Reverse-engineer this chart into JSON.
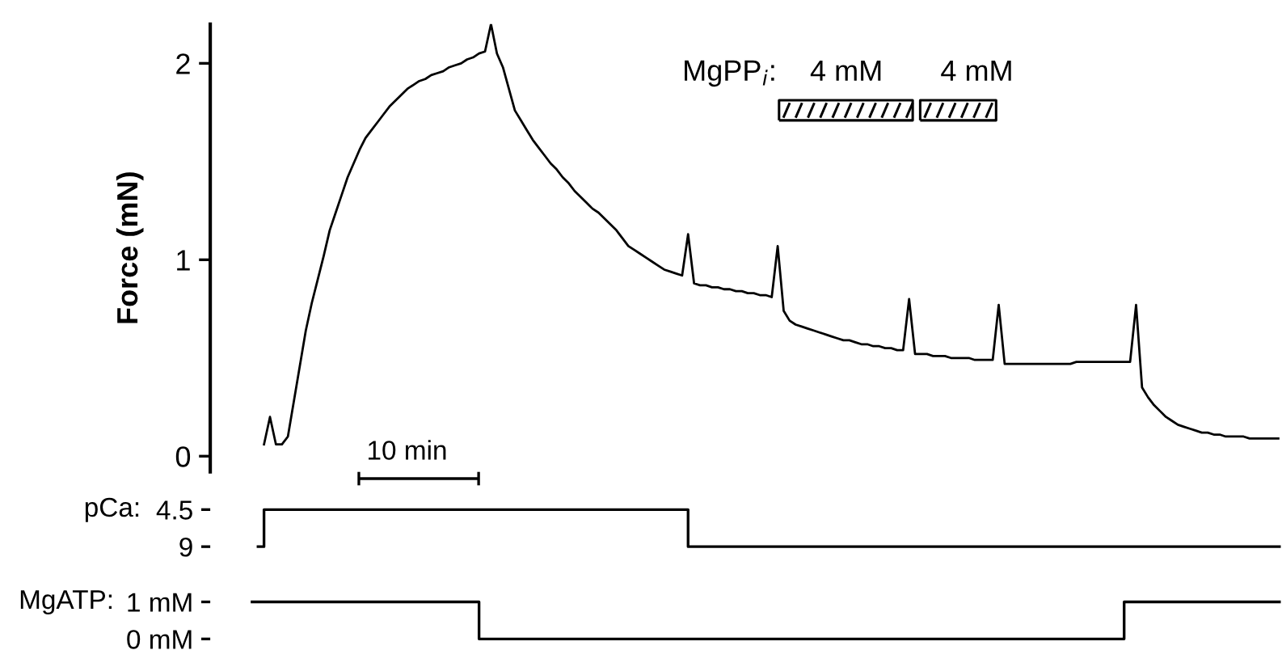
{
  "chart_data": [
    {
      "type": "line",
      "ylabel": "Force (mN)",
      "ylim": [
        -0.08,
        2.2
      ],
      "yticks": [
        0,
        1,
        2
      ],
      "tick_labels": "y",
      "grid": false,
      "categories": [
        null,
        null,
        null,
        null,
        null,
        null,
        null,
        null,
        null,
        null,
        null,
        null,
        null,
        null,
        null,
        null,
        null,
        null,
        null,
        null,
        null,
        null,
        null,
        null,
        null,
        null,
        null,
        null,
        null,
        null,
        null,
        null,
        null,
        null,
        null,
        null,
        null,
        null,
        null,
        null,
        null,
        null,
        null,
        null,
        null,
        null,
        null,
        null,
        null,
        null,
        null,
        null,
        null,
        null,
        null,
        null,
        null,
        null,
        null,
        null,
        null,
        null,
        null,
        null,
        null,
        null,
        null,
        null,
        null,
        null,
        null,
        null,
        null,
        null,
        null,
        null,
        null,
        null,
        null,
        null,
        null,
        null,
        null,
        null,
        null,
        null,
        null,
        null,
        null,
        null,
        null,
        null,
        null,
        null,
        null,
        null,
        null,
        null,
        null,
        null,
        null,
        null,
        null,
        null,
        null,
        null,
        null,
        null,
        null,
        null,
        null,
        null,
        null,
        null,
        null,
        null,
        null,
        null,
        null,
        null,
        null,
        null,
        null,
        null,
        null,
        null,
        null,
        null,
        null,
        null,
        null,
        null,
        null,
        null,
        null,
        null,
        null,
        null,
        null,
        null,
        null,
        null,
        null,
        null,
        null,
        null,
        null,
        null,
        null,
        null,
        null,
        null,
        null,
        null,
        null,
        null,
        null,
        null,
        null,
        null,
        null,
        null,
        null,
        null,
        null,
        null,
        null,
        null,
        null,
        null,
        null,
        null,
        null,
        null,
        null,
        null,
        null,
        null,
        null,
        null
      ],
      "series": [
        {
          "color": "#000000",
          "values": [
            null,
            null,
            null,
            null,
            null,
            null,
            null,
            null,
            null,
            0.06,
            0.2,
            0.06,
            0.06,
            0.1,
            0.28,
            0.46,
            0.64,
            0.78,
            0.9,
            1.02,
            1.15,
            1.24,
            1.33,
            1.42,
            1.49,
            1.56,
            1.62,
            1.66,
            1.7,
            1.74,
            1.78,
            1.81,
            1.84,
            1.87,
            1.89,
            1.91,
            1.92,
            1.94,
            1.95,
            1.96,
            1.98,
            1.99,
            2.0,
            2.02,
            2.03,
            2.05,
            2.06,
            2.2,
            2.05,
            1.98,
            1.87,
            1.76,
            1.71,
            1.66,
            1.61,
            1.57,
            1.53,
            1.49,
            1.46,
            1.42,
            1.39,
            1.35,
            1.32,
            1.29,
            1.26,
            1.24,
            1.21,
            1.18,
            1.15,
            1.11,
            1.07,
            1.05,
            1.03,
            1.01,
            0.99,
            0.97,
            0.95,
            0.94,
            0.93,
            0.92,
            1.13,
            0.88,
            0.87,
            0.87,
            0.86,
            0.86,
            0.85,
            0.85,
            0.84,
            0.84,
            0.83,
            0.83,
            0.82,
            0.82,
            0.81,
            1.07,
            0.74,
            0.69,
            0.67,
            0.66,
            0.65,
            0.64,
            0.63,
            0.62,
            0.61,
            0.6,
            0.59,
            0.59,
            0.58,
            0.57,
            0.57,
            0.56,
            0.56,
            0.55,
            0.55,
            0.54,
            0.54,
            0.8,
            0.52,
            0.52,
            0.52,
            0.51,
            0.51,
            0.51,
            0.5,
            0.5,
            0.5,
            0.5,
            0.49,
            0.49,
            0.49,
            0.49,
            0.77,
            0.47,
            0.47,
            0.47,
            0.47,
            0.47,
            0.47,
            0.47,
            0.47,
            0.47,
            0.47,
            0.47,
            0.47,
            0.48,
            0.48,
            0.48,
            0.48,
            0.48,
            0.48,
            0.48,
            0.48,
            0.48,
            0.48,
            0.77,
            0.35,
            0.3,
            0.26,
            0.23,
            0.2,
            0.18,
            0.16,
            0.15,
            0.14,
            0.13,
            0.12,
            0.12,
            0.11,
            0.11,
            0.1,
            0.1,
            0.1,
            0.1,
            0.09,
            0.09,
            0.09,
            0.09,
            0.09,
            0.09
          ]
        }
      ],
      "annotations": [
        "10 min",
        "MgPP$_{i}$:",
        "4 mM",
        "4 mM"
      ]
    },
    {
      "type": "step",
      "ylabel": "pCa:",
      "ylim": [
        9,
        4.5
      ],
      "yticks": [
        4.5,
        9
      ],
      "tick_labels": "y",
      "categories": [
        null,
        null,
        null,
        null,
        null,
        null,
        null,
        null,
        null,
        null,
        null,
        null,
        null,
        null,
        null,
        null,
        null,
        null,
        null,
        null,
        null,
        null,
        null,
        null,
        null,
        null,
        null,
        null,
        null,
        null,
        null,
        null,
        null,
        null,
        null,
        null,
        null,
        null,
        null,
        null,
        null,
        null,
        null,
        null,
        null,
        null,
        null,
        null,
        null,
        null,
        null,
        null,
        null,
        null,
        null,
        null,
        null,
        null,
        null,
        null,
        null,
        null,
        null,
        null,
        null,
        null,
        null,
        null,
        null,
        null,
        null,
        null,
        null,
        null,
        null,
        null,
        null,
        null,
        null,
        null,
        null,
        null,
        null,
        null,
        null,
        null,
        null,
        null,
        null,
        null,
        null,
        null,
        null,
        null,
        null,
        null,
        null,
        null,
        null,
        null,
        null,
        null,
        null,
        null,
        null,
        null,
        null,
        null,
        null,
        null,
        null,
        null,
        null,
        null,
        null,
        null,
        null,
        null,
        null,
        null,
        null,
        null,
        null,
        null,
        null,
        null,
        null,
        null,
        null,
        null,
        null,
        null,
        null,
        null,
        null,
        null,
        null,
        null,
        null,
        null,
        null,
        null,
        null,
        null,
        null,
        null,
        null,
        null,
        null,
        null,
        null,
        null,
        null,
        null,
        null,
        null,
        null,
        null,
        null,
        null,
        null,
        null,
        null,
        null,
        null,
        null,
        null,
        null,
        null,
        null,
        null,
        null,
        null,
        null,
        null,
        null,
        null,
        null,
        null,
        null
      ],
      "series": [
        {
          "color": "#000000",
          "values": [
            null,
            null,
            null,
            null,
            null,
            null,
            null,
            null,
            9,
            4.5,
            4.5,
            4.5,
            4.5,
            4.5,
            4.5,
            4.5,
            4.5,
            4.5,
            4.5,
            4.5,
            4.5,
            4.5,
            4.5,
            4.5,
            4.5,
            4.5,
            4.5,
            4.5,
            4.5,
            4.5,
            4.5,
            4.5,
            4.5,
            4.5,
            4.5,
            4.5,
            4.5,
            4.5,
            4.5,
            4.5,
            4.5,
            4.5,
            4.5,
            4.5,
            4.5,
            4.5,
            4.5,
            4.5,
            4.5,
            4.5,
            4.5,
            4.5,
            4.5,
            4.5,
            4.5,
            4.5,
            4.5,
            4.5,
            4.5,
            4.5,
            4.5,
            4.5,
            4.5,
            4.5,
            4.5,
            4.5,
            4.5,
            4.5,
            4.5,
            4.5,
            4.5,
            4.5,
            4.5,
            4.5,
            4.5,
            4.5,
            4.5,
            4.5,
            4.5,
            4.5,
            9,
            9,
            9,
            9,
            9,
            9,
            9,
            9,
            9,
            9,
            9,
            9,
            9,
            9,
            9,
            9,
            9,
            9,
            9,
            9,
            9,
            9,
            9,
            9,
            9,
            9,
            9,
            9,
            9,
            9,
            9,
            9,
            9,
            9,
            9,
            9,
            9,
            9,
            9,
            9,
            9,
            9,
            9,
            9,
            9,
            9,
            9,
            9,
            9,
            9,
            9,
            9,
            9,
            9,
            9,
            9,
            9,
            9,
            9,
            9,
            9,
            9,
            9,
            9,
            9,
            9,
            9,
            9,
            9,
            9,
            9,
            9,
            9,
            9,
            9,
            9,
            9,
            9,
            9,
            9,
            9,
            9,
            9,
            9,
            9,
            9,
            9,
            9,
            9,
            9,
            9,
            9,
            9,
            9,
            9,
            9,
            9,
            9,
            9,
            9
          ]
        }
      ]
    },
    {
      "type": "step",
      "ylabel": "MgATP:",
      "ylim": [
        0,
        1
      ],
      "yticks": [
        {
          "value": 0,
          "label": "0 mM"
        },
        {
          "value": 1,
          "label": "1 mM"
        }
      ],
      "tick_labels": "y",
      "categories": [
        null,
        null,
        null,
        null,
        null,
        null,
        null,
        null,
        null,
        null,
        null,
        null,
        null,
        null,
        null,
        null,
        null,
        null,
        null,
        null,
        null,
        null,
        null,
        null,
        null,
        null,
        null,
        null,
        null,
        null,
        null,
        null,
        null,
        null,
        null,
        null,
        null,
        null,
        null,
        null,
        null,
        null,
        null,
        null,
        null,
        null,
        null,
        null,
        null,
        null,
        null,
        null,
        null,
        null,
        null,
        null,
        null,
        null,
        null,
        null,
        null,
        null,
        null,
        null,
        null,
        null,
        null,
        null,
        null,
        null,
        null,
        null,
        null,
        null,
        null,
        null,
        null,
        null,
        null,
        null,
        null,
        null,
        null,
        null,
        null,
        null,
        null,
        null,
        null,
        null,
        null,
        null,
        null,
        null,
        null,
        null,
        null,
        null,
        null,
        null,
        null,
        null,
        null,
        null,
        null,
        null,
        null,
        null,
        null,
        null,
        null,
        null,
        null,
        null,
        null,
        null,
        null,
        null,
        null,
        null,
        null,
        null,
        null,
        null,
        null,
        null,
        null,
        null,
        null,
        null,
        null,
        null,
        null,
        null,
        null,
        null,
        null,
        null,
        null,
        null,
        null,
        null,
        null,
        null,
        null,
        null,
        null,
        null,
        null,
        null,
        null,
        null,
        null,
        null,
        null,
        null,
        null,
        null,
        null,
        null,
        null,
        null,
        null,
        null,
        null,
        null,
        null,
        null,
        null,
        null,
        null,
        null,
        null,
        null,
        null,
        null,
        null,
        null,
        null,
        null
      ],
      "series": [
        {
          "color": "#000000",
          "values": [
            null,
            null,
            null,
            null,
            null,
            null,
            null,
            1,
            1,
            1,
            1,
            1,
            1,
            1,
            1,
            1,
            1,
            1,
            1,
            1,
            1,
            1,
            1,
            1,
            1,
            1,
            1,
            1,
            1,
            1,
            1,
            1,
            1,
            1,
            1,
            1,
            1,
            1,
            1,
            1,
            1,
            1,
            1,
            1,
            1,
            0,
            0,
            0,
            0,
            0,
            0,
            0,
            0,
            0,
            0,
            0,
            0,
            0,
            0,
            0,
            0,
            0,
            0,
            0,
            0,
            0,
            0,
            0,
            0,
            0,
            0,
            0,
            0,
            0,
            0,
            0,
            0,
            0,
            0,
            0,
            0,
            0,
            0,
            0,
            0,
            0,
            0,
            0,
            0,
            0,
            0,
            0,
            0,
            0,
            0,
            0,
            0,
            0,
            0,
            0,
            0,
            0,
            0,
            0,
            0,
            0,
            0,
            0,
            0,
            0,
            0,
            0,
            0,
            0,
            0,
            0,
            0,
            0,
            0,
            0,
            0,
            0,
            0,
            0,
            0,
            0,
            0,
            0,
            0,
            0,
            0,
            0,
            0,
            0,
            0,
            0,
            0,
            0,
            0,
            0,
            0,
            0,
            0,
            0,
            0,
            0,
            0,
            0,
            0,
            0,
            0,
            0,
            0,
            1,
            1,
            1,
            1,
            1,
            1,
            1,
            1,
            1,
            1,
            1,
            1,
            1,
            1,
            1,
            1,
            1,
            1,
            1,
            1,
            1,
            1,
            1,
            1,
            1,
            1,
            1
          ]
        }
      ]
    }
  ]
}
